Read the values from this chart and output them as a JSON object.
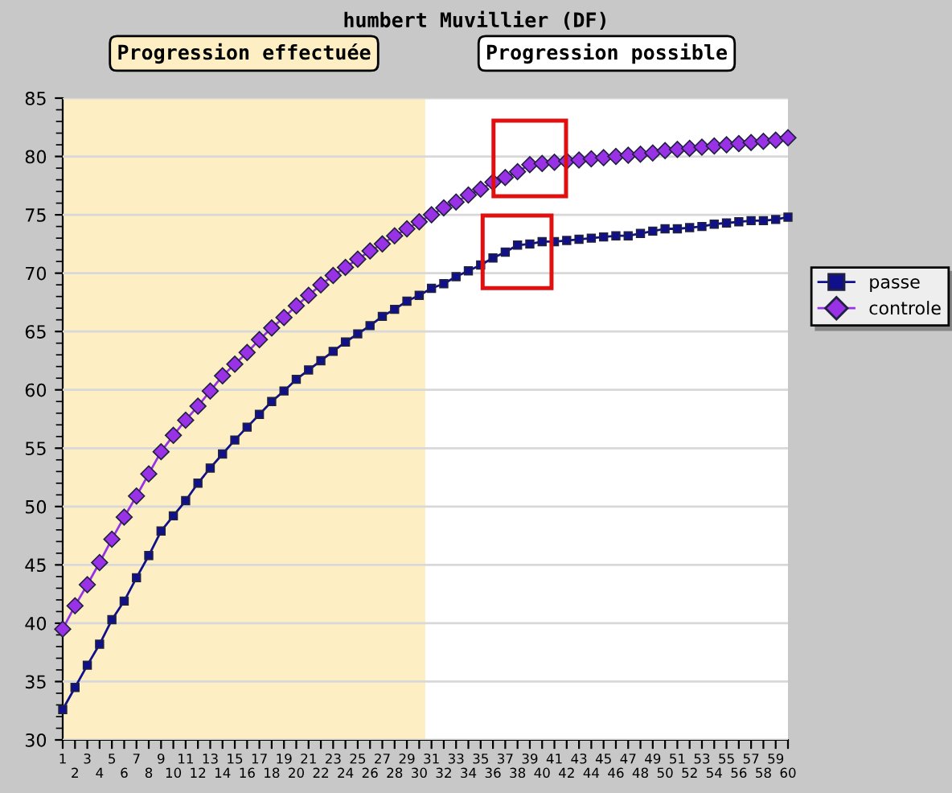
{
  "chart_data": {
    "type": "line",
    "title": "humbert Muvillier (DF)",
    "categories": [
      "1",
      "2",
      "3",
      "4",
      "5",
      "6",
      "7",
      "8",
      "9",
      "10",
      "11",
      "12",
      "13",
      "14",
      "15",
      "16",
      "17",
      "18",
      "19",
      "20",
      "21",
      "22",
      "23",
      "24",
      "25",
      "26",
      "27",
      "28",
      "29",
      "30",
      "31",
      "32",
      "33",
      "34",
      "35",
      "36",
      "37",
      "38",
      "39",
      "40",
      "41",
      "42",
      "43",
      "44",
      "45",
      "46",
      "47",
      "48",
      "49",
      "50",
      "51",
      "52",
      "53",
      "54",
      "55",
      "56",
      "57",
      "58",
      "59",
      "60"
    ],
    "series": [
      {
        "name": "passe",
        "color": "#10108c",
        "marker": "square",
        "values": [
          32.6,
          34.5,
          36.4,
          38.2,
          40.3,
          41.9,
          43.9,
          45.8,
          47.9,
          49.2,
          50.5,
          52.0,
          53.3,
          54.5,
          55.7,
          56.8,
          57.9,
          59.0,
          59.9,
          60.9,
          61.7,
          62.5,
          63.3,
          64.1,
          64.8,
          65.5,
          66.3,
          66.9,
          67.6,
          68.1,
          68.7,
          69.1,
          69.7,
          70.2,
          70.7,
          71.3,
          71.8,
          72.4,
          72.5,
          72.7,
          72.7,
          72.8,
          72.9,
          73.0,
          73.1,
          73.2,
          73.2,
          73.4,
          73.6,
          73.8,
          73.8,
          73.9,
          74.0,
          74.2,
          74.3,
          74.4,
          74.5,
          74.5,
          74.6,
          74.8
        ]
      },
      {
        "name": "controle",
        "color": "#9932e6",
        "marker": "diamond",
        "values": [
          39.5,
          41.5,
          43.3,
          45.2,
          47.2,
          49.1,
          50.9,
          52.8,
          54.7,
          56.1,
          57.4,
          58.6,
          59.9,
          61.2,
          62.2,
          63.2,
          64.3,
          65.3,
          66.2,
          67.2,
          68.1,
          69.0,
          69.8,
          70.5,
          71.2,
          71.9,
          72.5,
          73.2,
          73.8,
          74.4,
          75.0,
          75.6,
          76.1,
          76.7,
          77.2,
          77.8,
          78.2,
          78.7,
          79.3,
          79.4,
          79.5,
          79.6,
          79.7,
          79.8,
          79.9,
          80.0,
          80.1,
          80.2,
          80.3,
          80.5,
          80.6,
          80.7,
          80.8,
          80.9,
          81.0,
          81.1,
          81.2,
          81.3,
          81.4,
          81.6
        ]
      }
    ],
    "ylim": [
      30,
      85
    ],
    "yticks": [
      30,
      35,
      40,
      45,
      50,
      55,
      60,
      65,
      70,
      75,
      80,
      85
    ],
    "grid": "y",
    "legend": "right",
    "line_style": "solid",
    "bands": [
      {
        "axis": "x",
        "from": "1",
        "to": "30",
        "color": "#fdeec3",
        "label": "Progression effectuée"
      }
    ],
    "annotations": [
      "Progression possible"
    ]
  }
}
